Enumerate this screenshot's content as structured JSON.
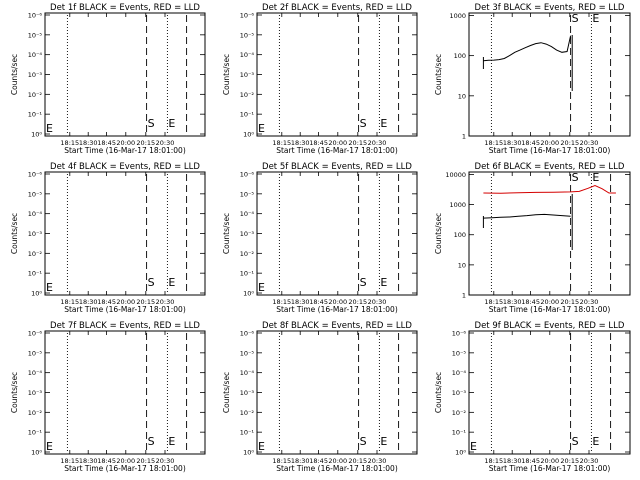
{
  "window": {
    "width": 640,
    "height": 480
  },
  "colors": {
    "events": "#000000",
    "lld": "#d40000",
    "background": "#ffffff"
  },
  "x_tick_labels": [
    "18:15",
    "18:30",
    "18:45",
    "20:00",
    "20:15",
    "20:30"
  ],
  "panels": [
    {
      "title": "Det 1f BLACK = Events, RED = LLD",
      "xlabel": "Start Time (16-Mar-17 18:01:00)",
      "ylabel": "Counts/sec",
      "y_tick_labels": [
        "10⁰",
        "10⁻¹",
        "10⁻²",
        "10⁻³",
        "10⁻⁴",
        "10⁻⁵",
        "10⁻⁶"
      ],
      "markers": [
        "E",
        "S",
        "E"
      ]
    },
    {
      "title": "Det 2f BLACK = Events, RED = LLD",
      "xlabel": "Start Time (16-Mar-17 18:01:00)",
      "ylabel": "Counts/sec",
      "y_tick_labels": [
        "10⁰",
        "10⁻¹",
        "10⁻²",
        "10⁻³",
        "10⁻⁴",
        "10⁻⁵",
        "10⁻⁶"
      ],
      "markers": [
        "E",
        "S",
        "E"
      ]
    },
    {
      "title": "Det 3f BLACK = Events, RED = LLD",
      "xlabel": "Start Time (16-Mar-17 18:01:00)",
      "ylabel": "Counts/sec",
      "y_tick_labels": [
        "1",
        "10",
        "100",
        "1000"
      ],
      "markers": [
        "S",
        "E"
      ]
    },
    {
      "title": "Det 4f BLACK = Events, RED = LLD",
      "xlabel": "Start Time (16-Mar-17 18:01:00)",
      "ylabel": "Counts/sec",
      "y_tick_labels": [
        "10⁰",
        "10⁻¹",
        "10⁻²",
        "10⁻³",
        "10⁻⁴",
        "10⁻⁵",
        "10⁻⁶"
      ],
      "markers": [
        "E",
        "S",
        "E"
      ]
    },
    {
      "title": "Det 5f BLACK = Events, RED = LLD",
      "xlabel": "Start Time (16-Mar-17 18:01:00)",
      "ylabel": "Counts/sec",
      "y_tick_labels": [
        "10⁰",
        "10⁻¹",
        "10⁻²",
        "10⁻³",
        "10⁻⁴",
        "10⁻⁵",
        "10⁻⁶"
      ],
      "markers": [
        "E",
        "S",
        "E"
      ]
    },
    {
      "title": "Det 6f BLACK = Events, RED = LLD",
      "xlabel": "Start Time (16-Mar-17 18:01:00)",
      "ylabel": "Counts/sec",
      "y_tick_labels": [
        "1",
        "10",
        "100",
        "1000",
        "10000"
      ],
      "markers": [
        "S",
        "E"
      ]
    },
    {
      "title": "Det 7f BLACK = Events, RED = LLD",
      "xlabel": "Start Time (16-Mar-17 18:01:00)",
      "ylabel": "Counts/sec",
      "y_tick_labels": [
        "10⁰",
        "10⁻¹",
        "10⁻²",
        "10⁻³",
        "10⁻⁴",
        "10⁻⁵",
        "10⁻⁶"
      ],
      "markers": [
        "E",
        "S",
        "E"
      ]
    },
    {
      "title": "Det 8f BLACK = Events, RED = LLD",
      "xlabel": "Start Time (16-Mar-17 18:01:00)",
      "ylabel": "Counts/sec",
      "y_tick_labels": [
        "10⁰",
        "10⁻¹",
        "10⁻²",
        "10⁻³",
        "10⁻⁴",
        "10⁻⁵",
        "10⁻⁶"
      ],
      "markers": [
        "E",
        "S",
        "E"
      ]
    },
    {
      "title": "Det 9f BLACK = Events, RED = LLD",
      "xlabel": "Start Time (16-Mar-17 18:01:00)",
      "ylabel": "Counts/sec",
      "y_tick_labels": [
        "10⁰",
        "10⁻¹",
        "10⁻²",
        "10⁻³",
        "10⁻⁴",
        "10⁻⁵",
        "10⁻⁶"
      ],
      "markers": [
        "E",
        "S",
        "E"
      ]
    }
  ],
  "chart_data": [
    {
      "type": "line",
      "title": "Det 1f BLACK = Events, RED = LLD",
      "xlabel": "Start Time (16-Mar-17 18:01:00)",
      "ylabel": "Counts/sec",
      "y_scale": "log",
      "series": []
    },
    {
      "type": "line",
      "title": "Det 2f BLACK = Events, RED = LLD",
      "xlabel": "Start Time (16-Mar-17 18:01:00)",
      "ylabel": "Counts/sec",
      "y_scale": "log",
      "series": []
    },
    {
      "type": "line",
      "title": "Det 3f BLACK = Events, RED = LLD",
      "xlabel": "Start Time (16-Mar-17 18:01:00)",
      "ylabel": "Counts/sec",
      "y_scale": "log",
      "ylim": [
        1,
        1000
      ],
      "series": [
        {
          "color": "#000000",
          "x": [
            0.0,
            0.06,
            0.12,
            0.18,
            0.24,
            0.3,
            0.36,
            0.42,
            0.48,
            0.54,
            0.6,
            0.66,
            0.72,
            0.78,
            0.84,
            0.9,
            0.96,
            1.0
          ],
          "y": [
            70,
            72,
            73,
            75,
            80,
            95,
            115,
            130,
            150,
            170,
            190,
            200,
            185,
            160,
            130,
            115,
            120,
            300
          ]
        }
      ]
    },
    {
      "type": "line",
      "title": "Det 4f BLACK = Events, RED = LLD",
      "xlabel": "Start Time (16-Mar-17 18:01:00)",
      "ylabel": "Counts/sec",
      "y_scale": "log",
      "series": []
    },
    {
      "type": "line",
      "title": "Det 5f BLACK = Events, RED = LLD",
      "xlabel": "Start Time (16-Mar-17 18:01:00)",
      "ylabel": "Counts/sec",
      "y_scale": "log",
      "series": []
    },
    {
      "type": "line",
      "title": "Det 6f BLACK = Events, RED = LLD",
      "xlabel": "Start Time (16-Mar-17 18:01:00)",
      "ylabel": "Counts/sec",
      "y_scale": "log",
      "ylim": [
        1,
        10000
      ],
      "series": [
        {
          "color": "#000000",
          "x": [
            0.0,
            0.1,
            0.2,
            0.3,
            0.4,
            0.5,
            0.6,
            0.7,
            0.8,
            0.9,
            1.0
          ],
          "y": [
            330,
            340,
            350,
            360,
            380,
            400,
            430,
            440,
            420,
            400,
            380
          ]
        },
        {
          "color": "#d40000",
          "x": [
            0.0,
            0.2,
            0.4,
            0.6,
            0.8,
            1.0,
            1.1,
            1.2,
            1.28,
            1.36,
            1.44,
            1.52
          ],
          "y": [
            2300,
            2250,
            2350,
            2400,
            2450,
            2500,
            2600,
            3300,
            4100,
            3200,
            2300,
            2300
          ]
        }
      ]
    },
    {
      "type": "line",
      "title": "Det 7f BLACK = Events, RED = LLD",
      "xlabel": "Start Time (16-Mar-17 18:01:00)",
      "ylabel": "Counts/sec",
      "y_scale": "log",
      "series": []
    },
    {
      "type": "line",
      "title": "Det 8f BLACK = Events, RED = LLD",
      "xlabel": "Start Time (16-Mar-17 18:01:00)",
      "ylabel": "Counts/sec",
      "y_scale": "log",
      "series": []
    },
    {
      "type": "line",
      "title": "Det 9f BLACK = Events, RED = LLD",
      "xlabel": "Start Time (16-Mar-17 18:01:00)",
      "ylabel": "Counts/sec",
      "y_scale": "log",
      "series": []
    }
  ]
}
